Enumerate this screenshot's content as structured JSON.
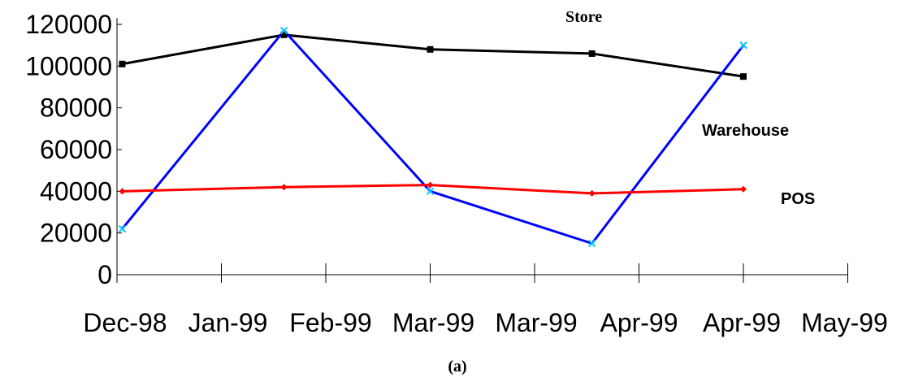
{
  "chart_data": {
    "type": "line",
    "title": "",
    "xlabel": "",
    "ylabel": "",
    "x_tick_labels": [
      "Dec-98",
      "Jan-99",
      "Feb-99",
      "Mar-99",
      "Mar-99",
      "Apr-99",
      "Apr-99",
      "May-99"
    ],
    "y_ticks": [
      0,
      20000,
      40000,
      60000,
      80000,
      100000,
      120000
    ],
    "ylim": [
      0,
      120000
    ],
    "grid": false,
    "legend": "inline labels",
    "x": [
      "Dec-98",
      "Feb-99",
      "Mar-99",
      "Apr-99",
      "Apr-99"
    ],
    "series": [
      {
        "name": "Store",
        "color": "#000000",
        "marker": "square",
        "values": [
          101000,
          115000,
          108000,
          106000,
          95000
        ]
      },
      {
        "name": "Warehouse",
        "color": "#0000ff",
        "marker": "x",
        "marker_color": "#00c8ff",
        "values": [
          22000,
          117000,
          40000,
          15000,
          110000
        ]
      },
      {
        "name": "POS",
        "color": "#ff0000",
        "marker": "diamond",
        "values": [
          40000,
          42000,
          43000,
          39000,
          41000
        ]
      }
    ],
    "caption": "(a)"
  }
}
